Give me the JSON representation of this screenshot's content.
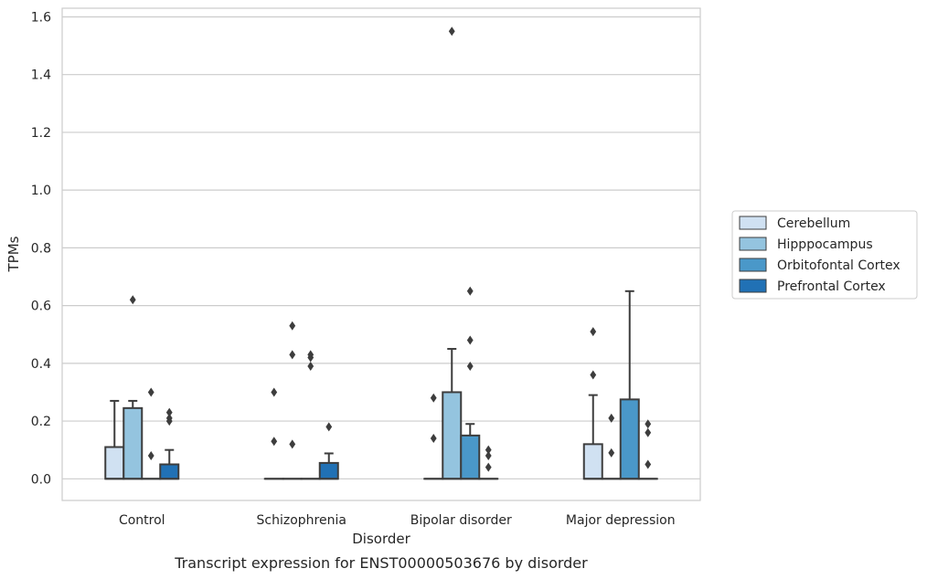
{
  "chart_data": {
    "type": "box",
    "title": "",
    "caption": "Transcript expression for ENST00000503676 by disorder",
    "xlabel": "Disorder",
    "ylabel": "TPMs",
    "ylim": [
      -0.075,
      1.63
    ],
    "yticks": [
      "0.0",
      "0.2",
      "0.4",
      "0.6",
      "0.8",
      "1.0",
      "1.2",
      "1.4",
      "1.6"
    ],
    "grid": true,
    "legend_position": "right",
    "categories": [
      "Control",
      "Schizophrenia",
      "Bipolar disorder",
      "Major depression"
    ],
    "series": [
      {
        "name": "Cerebellum",
        "color": "#d0e1f2",
        "boxes": [
          {
            "q1": 0.0,
            "median": 0.0,
            "q3": 0.11,
            "whisker_low": 0.0,
            "whisker_high": 0.27,
            "outliers": []
          },
          {
            "q1": 0.0,
            "median": 0.0,
            "q3": 0.0,
            "whisker_low": 0.0,
            "whisker_high": 0.0,
            "outliers": [
              0.13,
              0.3
            ]
          },
          {
            "q1": 0.0,
            "median": 0.0,
            "q3": 0.0,
            "whisker_low": 0.0,
            "whisker_high": 0.0,
            "outliers": [
              0.14,
              0.28
            ]
          },
          {
            "q1": 0.0,
            "median": 0.0,
            "q3": 0.12,
            "whisker_low": 0.0,
            "whisker_high": 0.29,
            "outliers": [
              0.36,
              0.51
            ]
          }
        ]
      },
      {
        "name": "Hipppocampus",
        "color": "#94c4df",
        "boxes": [
          {
            "q1": 0.0,
            "median": 0.0,
            "q3": 0.245,
            "whisker_low": 0.0,
            "whisker_high": 0.27,
            "outliers": [
              0.62
            ]
          },
          {
            "q1": 0.0,
            "median": 0.0,
            "q3": 0.0,
            "whisker_low": 0.0,
            "whisker_high": 0.0,
            "outliers": [
              0.12,
              0.43,
              0.53
            ]
          },
          {
            "q1": 0.0,
            "median": 0.0,
            "q3": 0.3,
            "whisker_low": 0.0,
            "whisker_high": 0.45,
            "outliers": [
              1.55
            ]
          },
          {
            "q1": 0.0,
            "median": 0.0,
            "q3": 0.0,
            "whisker_low": 0.0,
            "whisker_high": 0.0,
            "outliers": [
              0.09,
              0.21
            ]
          }
        ]
      },
      {
        "name": "Orbitofontal Cortex",
        "color": "#4a98c9",
        "boxes": [
          {
            "q1": 0.0,
            "median": 0.0,
            "q3": 0.0,
            "whisker_low": 0.0,
            "whisker_high": 0.0,
            "outliers": [
              0.08,
              0.3
            ]
          },
          {
            "q1": 0.0,
            "median": 0.0,
            "q3": 0.0,
            "whisker_low": 0.0,
            "whisker_high": 0.0,
            "outliers": [
              0.39,
              0.42,
              0.43
            ]
          },
          {
            "q1": 0.0,
            "median": 0.0,
            "q3": 0.15,
            "whisker_low": 0.0,
            "whisker_high": 0.19,
            "outliers": [
              0.39,
              0.48,
              0.65
            ]
          },
          {
            "q1": 0.0,
            "median": 0.0,
            "q3": 0.275,
            "whisker_low": 0.0,
            "whisker_high": 0.65,
            "outliers": []
          }
        ]
      },
      {
        "name": "Prefrontal Cortex",
        "color": "#2171b5",
        "boxes": [
          {
            "q1": 0.0,
            "median": 0.0,
            "q3": 0.05,
            "whisker_low": 0.0,
            "whisker_high": 0.1,
            "outliers": [
              0.2,
              0.21,
              0.23
            ]
          },
          {
            "q1": 0.0,
            "median": 0.0,
            "q3": 0.055,
            "whisker_low": 0.0,
            "whisker_high": 0.088,
            "outliers": [
              0.18
            ]
          },
          {
            "q1": 0.0,
            "median": 0.0,
            "q3": 0.0,
            "whisker_low": 0.0,
            "whisker_high": 0.0,
            "outliers": [
              0.04,
              0.08,
              0.1
            ]
          },
          {
            "q1": 0.0,
            "median": 0.0,
            "q3": 0.0,
            "whisker_low": 0.0,
            "whisker_high": 0.0,
            "outliers": [
              0.05,
              0.16,
              0.19
            ]
          }
        ]
      }
    ]
  }
}
